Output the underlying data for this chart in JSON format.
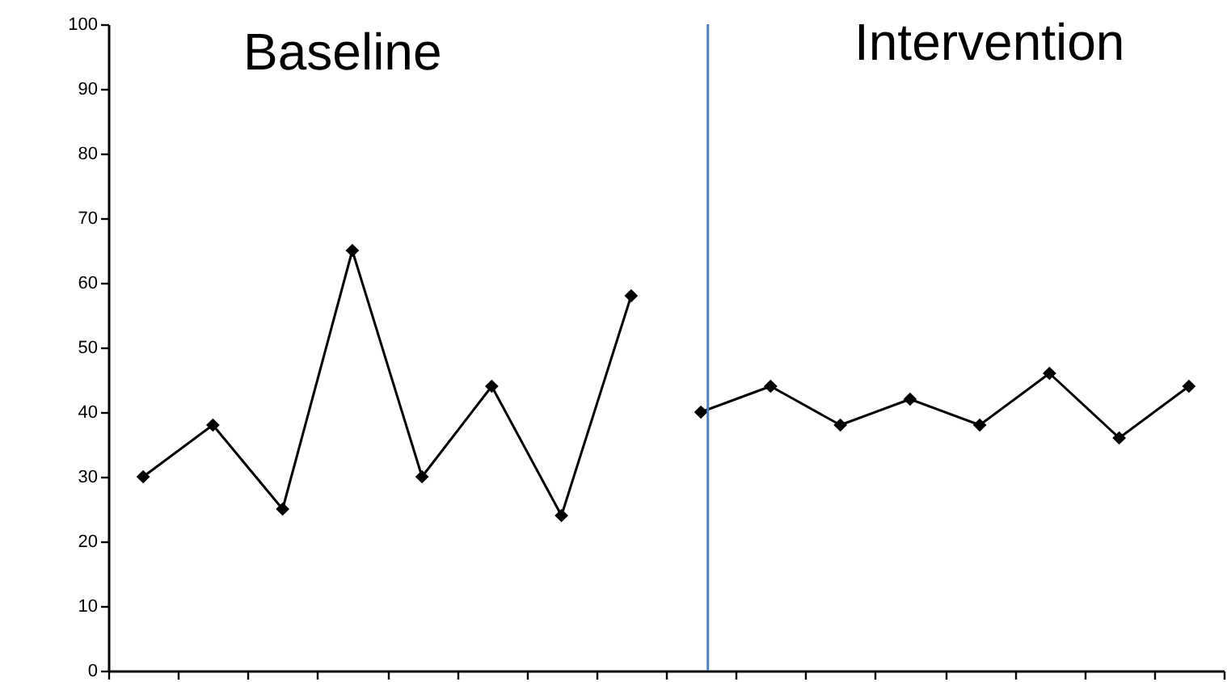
{
  "chart_data": {
    "type": "line",
    "categories": [
      null,
      null,
      null,
      null,
      null,
      null,
      null,
      null,
      null,
      null,
      null,
      null,
      null,
      null,
      null,
      null
    ],
    "series": [
      {
        "color": "#000000",
        "values": [
          30,
          38,
          25,
          65,
          30,
          44,
          24,
          58,
          null,
          null,
          null,
          null,
          null,
          null,
          null,
          null
        ]
      },
      {
        "color": "#000000",
        "values": [
          null,
          null,
          null,
          null,
          null,
          null,
          null,
          null,
          40,
          44,
          38,
          42,
          38,
          46,
          36,
          44
        ]
      }
    ],
    "ylim": [
      0,
      100
    ],
    "yticks": [
      0,
      10,
      20,
      30,
      40,
      50,
      60,
      70,
      80,
      90,
      100
    ],
    "annotations": [
      "Baseline",
      "Intervention"
    ],
    "marker": "diamond",
    "line_style": "solid",
    "grid": false
  }
}
